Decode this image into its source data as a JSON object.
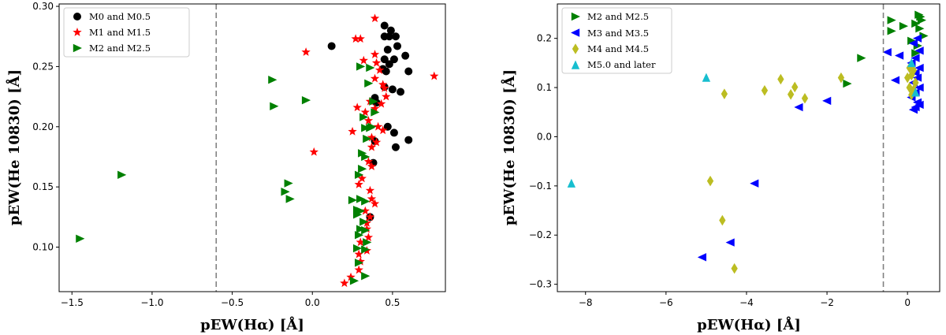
{
  "chart_data": [
    {
      "type": "scatter",
      "title": "",
      "xlabel": "pEW(Hα) [Å]",
      "ylabel": "pEW(He 10830) [Å]",
      "xlim": [
        -1.58,
        0.83
      ],
      "ylim": [
        0.063,
        0.302
      ],
      "xticks": [
        -1.5,
        -1.0,
        -0.5,
        0.0,
        0.5
      ],
      "xtick_labels": [
        "−1.5",
        "−1.0",
        "−0.5",
        "0.0",
        "0.5"
      ],
      "yticks": [
        0.1,
        0.15,
        0.2,
        0.25,
        0.3
      ],
      "ytick_labels": [
        "0.10",
        "0.15",
        "0.20",
        "0.25",
        "0.30"
      ],
      "vline": -0.6,
      "legend_position": "top-left",
      "series": [
        {
          "name": "M0 and M0.5",
          "marker": "circle",
          "color": "#000000",
          "points": [
            [
              0.45,
              0.284
            ],
            [
              0.49,
              0.28
            ],
            [
              0.45,
              0.275
            ],
            [
              0.48,
              0.275
            ],
            [
              0.52,
              0.275
            ],
            [
              0.12,
              0.267
            ],
            [
              0.53,
              0.267
            ],
            [
              0.47,
              0.264
            ],
            [
              0.58,
              0.259
            ],
            [
              0.45,
              0.256
            ],
            [
              0.51,
              0.256
            ],
            [
              0.48,
              0.252
            ],
            [
              0.44,
              0.248
            ],
            [
              0.46,
              0.246
            ],
            [
              0.6,
              0.246
            ],
            [
              0.5,
              0.231
            ],
            [
              0.45,
              0.233
            ],
            [
              0.55,
              0.229
            ],
            [
              0.39,
              0.224
            ],
            [
              0.4,
              0.22
            ],
            [
              0.47,
              0.2
            ],
            [
              0.51,
              0.195
            ],
            [
              0.39,
              0.188
            ],
            [
              0.6,
              0.189
            ],
            [
              0.52,
              0.183
            ],
            [
              0.38,
              0.17
            ],
            [
              0.36,
              0.125
            ]
          ]
        },
        {
          "name": "M1 and M1.5",
          "marker": "star",
          "color": "#ff0000",
          "points": [
            [
              0.39,
              0.29
            ],
            [
              0.27,
              0.273
            ],
            [
              0.3,
              0.273
            ],
            [
              -0.04,
              0.262
            ],
            [
              0.39,
              0.26
            ],
            [
              0.32,
              0.255
            ],
            [
              0.4,
              0.253
            ],
            [
              0.42,
              0.247
            ],
            [
              0.76,
              0.242
            ],
            [
              0.39,
              0.24
            ],
            [
              0.44,
              0.235
            ],
            [
              0.45,
              0.232
            ],
            [
              0.46,
              0.225
            ],
            [
              0.36,
              0.221
            ],
            [
              0.43,
              0.219
            ],
            [
              0.28,
              0.216
            ],
            [
              0.39,
              0.215
            ],
            [
              0.33,
              0.212
            ],
            [
              0.35,
              0.205
            ],
            [
              0.41,
              0.2
            ],
            [
              0.44,
              0.197
            ],
            [
              0.37,
              0.191
            ],
            [
              0.25,
              0.196
            ],
            [
              0.4,
              0.187
            ],
            [
              0.37,
              0.183
            ],
            [
              0.01,
              0.179
            ],
            [
              0.35,
              0.171
            ],
            [
              0.37,
              0.167
            ],
            [
              0.31,
              0.157
            ],
            [
              0.29,
              0.152
            ],
            [
              0.36,
              0.147
            ],
            [
              0.37,
              0.14
            ],
            [
              0.39,
              0.136
            ],
            [
              0.33,
              0.13
            ],
            [
              0.36,
              0.125
            ],
            [
              0.34,
              0.12
            ],
            [
              0.34,
              0.115
            ],
            [
              0.35,
              0.108
            ],
            [
              0.3,
              0.104
            ],
            [
              0.34,
              0.097
            ],
            [
              0.29,
              0.094
            ],
            [
              0.3,
              0.088
            ],
            [
              0.29,
              0.081
            ],
            [
              0.24,
              0.075
            ],
            [
              0.2,
              0.07
            ]
          ]
        },
        {
          "name": "M2 and M2.5",
          "marker": "triangle-right",
          "color": "#008000",
          "points": [
            [
              0.3,
              0.25
            ],
            [
              0.36,
              0.249
            ],
            [
              0.35,
              0.236
            ],
            [
              -0.25,
              0.239
            ],
            [
              -0.04,
              0.222
            ],
            [
              0.38,
              0.221
            ],
            [
              -0.24,
              0.217
            ],
            [
              0.39,
              0.212
            ],
            [
              0.32,
              0.208
            ],
            [
              0.37,
              0.2
            ],
            [
              0.33,
              0.199
            ],
            [
              0.36,
              0.199
            ],
            [
              0.34,
              0.19
            ],
            [
              0.31,
              0.178
            ],
            [
              0.33,
              0.175
            ],
            [
              0.31,
              0.165
            ],
            [
              0.29,
              0.16
            ],
            [
              -1.19,
              0.16
            ],
            [
              -0.15,
              0.153
            ],
            [
              -0.17,
              0.146
            ],
            [
              -0.14,
              0.14
            ],
            [
              0.3,
              0.14
            ],
            [
              0.25,
              0.139
            ],
            [
              0.33,
              0.138
            ],
            [
              0.28,
              0.131
            ],
            [
              0.3,
              0.13
            ],
            [
              0.28,
              0.127
            ],
            [
              0.32,
              0.121
            ],
            [
              0.3,
              0.115
            ],
            [
              0.33,
              0.114
            ],
            [
              0.29,
              0.11
            ],
            [
              -1.45,
              0.107
            ],
            [
              0.34,
              0.104
            ],
            [
              0.28,
              0.099
            ],
            [
              0.33,
              0.098
            ],
            [
              0.29,
              0.087
            ],
            [
              0.33,
              0.076
            ],
            [
              0.26,
              0.072
            ]
          ]
        }
      ]
    },
    {
      "type": "scatter",
      "title": "",
      "xlabel": "pEW(Hα) [Å]",
      "ylabel": "pEW(He 10830) [Å]",
      "xlim": [
        -8.7,
        0.8
      ],
      "ylim": [
        -0.315,
        0.27
      ],
      "xticks": [
        -8,
        -6,
        -4,
        -2,
        0
      ],
      "xtick_labels": [
        "−8",
        "−6",
        "−4",
        "−2",
        "0"
      ],
      "yticks": [
        -0.3,
        -0.2,
        -0.1,
        0.0,
        0.1,
        0.2
      ],
      "ytick_labels": [
        "−0.3",
        "−0.2",
        "−0.1",
        "0.0",
        "0.1",
        "0.2"
      ],
      "vline": -0.6,
      "legend_position": "top-left",
      "series": [
        {
          "name": "M2 and M2.5",
          "marker": "triangle-right",
          "color": "#008000",
          "points": [
            [
              0.28,
              0.248
            ],
            [
              0.32,
              0.244
            ],
            [
              0.35,
              0.237
            ],
            [
              -0.4,
              0.237
            ],
            [
              0.2,
              0.23
            ],
            [
              -0.1,
              0.225
            ],
            [
              -0.4,
              0.215
            ],
            [
              0.3,
              0.22
            ],
            [
              0.4,
              0.205
            ],
            [
              0.1,
              0.195
            ],
            [
              0.25,
              0.185
            ],
            [
              -1.15,
              0.16
            ],
            [
              -1.5,
              0.108
            ],
            [
              0.2,
              0.17
            ]
          ]
        },
        {
          "name": "M3 and M3.5",
          "marker": "triangle-left",
          "color": "#0000ff",
          "points": [
            [
              -0.5,
              0.172
            ],
            [
              -0.2,
              0.165
            ],
            [
              0.25,
              0.2
            ],
            [
              0.15,
              0.19
            ],
            [
              0.3,
              0.175
            ],
            [
              0.2,
              0.16
            ],
            [
              0.1,
              0.15
            ],
            [
              0.3,
              0.14
            ],
            [
              0.2,
              0.13
            ],
            [
              0.25,
              0.12
            ],
            [
              -0.3,
              0.115
            ],
            [
              0.15,
              0.11
            ],
            [
              0.3,
              0.1
            ],
            [
              0.2,
              0.09
            ],
            [
              0.1,
              0.08
            ],
            [
              0.25,
              0.07
            ],
            [
              0.2,
              0.06
            ],
            [
              0.3,
              0.065
            ],
            [
              0.15,
              0.055
            ],
            [
              -2.0,
              0.073
            ],
            [
              -2.7,
              0.06
            ],
            [
              -3.8,
              -0.095
            ],
            [
              -4.4,
              -0.215
            ],
            [
              -5.1,
              -0.245
            ]
          ]
        },
        {
          "name": "M4 and M4.5",
          "marker": "diamond",
          "color": "#bcbd22",
          "points": [
            [
              -3.15,
              0.117
            ],
            [
              -3.55,
              0.094
            ],
            [
              -2.8,
              0.101
            ],
            [
              -2.9,
              0.086
            ],
            [
              -2.55,
              0.078
            ],
            [
              -1.65,
              0.12
            ],
            [
              -4.55,
              0.087
            ],
            [
              0.05,
              0.14
            ],
            [
              0.15,
              0.135
            ],
            [
              0.1,
              0.125
            ],
            [
              0.0,
              0.12
            ],
            [
              0.2,
              0.11
            ],
            [
              0.05,
              0.1
            ],
            [
              0.15,
              0.095
            ],
            [
              0.1,
              0.085
            ],
            [
              -4.9,
              -0.09
            ],
            [
              -4.6,
              -0.17
            ],
            [
              -4.3,
              -0.268
            ]
          ]
        },
        {
          "name": "M5.0 and later",
          "marker": "triangle-up",
          "color": "#17becf",
          "points": [
            [
              -5.0,
              0.12
            ],
            [
              -8.35,
              -0.095
            ],
            [
              0.1,
              0.15
            ],
            [
              0.2,
              0.09
            ]
          ]
        }
      ]
    }
  ]
}
